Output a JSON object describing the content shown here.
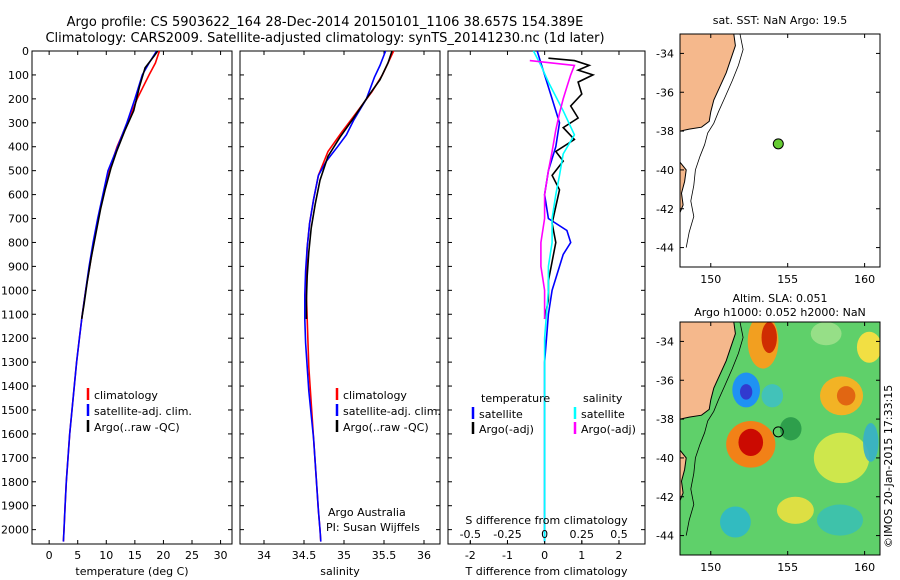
{
  "header": {
    "line1": "Argo profile: CS 5903622_164 28-Dec-2014 20150101_1106 38.657S 154.389E",
    "line2": "Climatology: CARS2009. Satellite-adjusted climatology: synTS_20141230.nc (1d later)"
  },
  "colors": {
    "climatology": "#ff0000",
    "satellite": "#0000ff",
    "argo": "#000000",
    "sat_salinity": "#00ffff",
    "argo_adj_salinity": "#ff00ff",
    "land": "#f5b88c",
    "argo_marker": "#66cc33"
  },
  "chart_data": [
    {
      "type": "line",
      "xlabel": "temperature (deg C)",
      "xlim": [
        -3,
        32
      ],
      "x_ticks": [
        0,
        5,
        10,
        15,
        20,
        25,
        30
      ],
      "y_ticks": [
        0,
        100,
        200,
        300,
        400,
        500,
        600,
        700,
        800,
        900,
        1000,
        1100,
        1200,
        1300,
        1400,
        1500,
        1600,
        1700,
        1800,
        1900,
        2000
      ],
      "ylim": [
        2060,
        0
      ],
      "legend": [
        "climatology",
        "satellite-adj. clim.",
        "Argo(..raw -QC)"
      ],
      "series": [
        {
          "name": "climatology",
          "color": "climatology",
          "points": [
            [
              19.3,
              0
            ],
            [
              18.6,
              50
            ],
            [
              17.5,
              100
            ],
            [
              15.4,
              200
            ],
            [
              13.7,
              300
            ],
            [
              11.9,
              400
            ],
            [
              10.5,
              500
            ],
            [
              9.5,
              600
            ],
            [
              8.6,
              700
            ],
            [
              7.8,
              800
            ],
            [
              7.1,
              900
            ],
            [
              6.4,
              1000
            ],
            [
              5.8,
              1100
            ],
            [
              5.3,
              1200
            ],
            [
              4.8,
              1300
            ],
            [
              4.4,
              1400
            ],
            [
              4.0,
              1500
            ],
            [
              3.6,
              1600
            ],
            [
              3.3,
              1700
            ],
            [
              3.0,
              1800
            ],
            [
              2.8,
              1900
            ],
            [
              2.6,
              2000
            ],
            [
              2.5,
              2050
            ]
          ]
        },
        {
          "name": "satellite-adj. clim.",
          "color": "satellite",
          "points": [
            [
              18.8,
              0
            ],
            [
              17.5,
              50
            ],
            [
              16.3,
              100
            ],
            [
              15.0,
              200
            ],
            [
              13.6,
              300
            ],
            [
              12.0,
              400
            ],
            [
              10.3,
              500
            ],
            [
              9.4,
              600
            ],
            [
              8.5,
              700
            ],
            [
              7.7,
              800
            ],
            [
              7.0,
              900
            ],
            [
              6.4,
              1000
            ],
            [
              5.8,
              1100
            ],
            [
              5.3,
              1200
            ],
            [
              4.8,
              1300
            ],
            [
              4.4,
              1400
            ],
            [
              4.0,
              1500
            ],
            [
              3.6,
              1600
            ],
            [
              3.3,
              1700
            ],
            [
              3.0,
              1800
            ],
            [
              2.8,
              1900
            ],
            [
              2.6,
              2000
            ],
            [
              2.5,
              2050
            ]
          ]
        },
        {
          "name": "Argo(..raw -QC)",
          "color": "argo",
          "points": [
            [
              19.0,
              0
            ],
            [
              18.4,
              20
            ],
            [
              16.8,
              70
            ],
            [
              15.8,
              150
            ],
            [
              14.8,
              250
            ],
            [
              13.3,
              330
            ],
            [
              11.8,
              420
            ],
            [
              10.8,
              490
            ],
            [
              9.8,
              580
            ],
            [
              9.0,
              660
            ],
            [
              8.2,
              760
            ],
            [
              7.4,
              860
            ],
            [
              6.7,
              960
            ],
            [
              6.1,
              1060
            ],
            [
              5.7,
              1120
            ]
          ]
        }
      ]
    },
    {
      "type": "line",
      "xlabel": "salinity",
      "xlim": [
        33.7,
        36.2
      ],
      "x_ticks": [
        34,
        34.5,
        35,
        35.5,
        36
      ],
      "ylim": [
        2060,
        0
      ],
      "legend": [
        "climatology",
        "satellite-adj. clim.",
        "Argo(..raw -QC)"
      ],
      "annotation": [
        "Argo Australia",
        "PI: Susan Wijffels"
      ],
      "series": [
        {
          "name": "climatology",
          "color": "climatology",
          "points": [
            [
              35.62,
              0
            ],
            [
              35.55,
              50
            ],
            [
              35.48,
              100
            ],
            [
              35.35,
              170
            ],
            [
              35.15,
              260
            ],
            [
              34.97,
              340
            ],
            [
              34.8,
              420
            ],
            [
              34.68,
              520
            ],
            [
              34.62,
              620
            ],
            [
              34.57,
              720
            ],
            [
              34.54,
              820
            ],
            [
              34.53,
              920
            ],
            [
              34.53,
              1020
            ],
            [
              34.54,
              1120
            ],
            [
              34.55,
              1220
            ],
            [
              34.56,
              1320
            ],
            [
              34.58,
              1420
            ],
            [
              34.6,
              1520
            ],
            [
              34.62,
              1620
            ],
            [
              34.64,
              1720
            ],
            [
              34.66,
              1820
            ],
            [
              34.68,
              1920
            ],
            [
              34.7,
              2000
            ],
            [
              34.71,
              2050
            ]
          ]
        },
        {
          "name": "satellite-adj. clim.",
          "color": "satellite",
          "points": [
            [
              35.52,
              0
            ],
            [
              35.45,
              60
            ],
            [
              35.38,
              110
            ],
            [
              35.28,
              200
            ],
            [
              35.12,
              290
            ],
            [
              35.03,
              350
            ],
            [
              34.92,
              400
            ],
            [
              34.78,
              460
            ],
            [
              34.68,
              520
            ],
            [
              34.62,
              620
            ],
            [
              34.57,
              720
            ],
            [
              34.54,
              820
            ],
            [
              34.52,
              920
            ],
            [
              34.51,
              1020
            ],
            [
              34.51,
              1120
            ],
            [
              34.52,
              1220
            ],
            [
              34.54,
              1320
            ],
            [
              34.56,
              1420
            ],
            [
              34.59,
              1520
            ],
            [
              34.62,
              1620
            ],
            [
              34.64,
              1720
            ],
            [
              34.66,
              1820
            ],
            [
              34.68,
              1920
            ],
            [
              34.7,
              2000
            ],
            [
              34.71,
              2050
            ]
          ]
        },
        {
          "name": "Argo(..raw -QC)",
          "color": "argo",
          "points": [
            [
              35.6,
              0
            ],
            [
              35.55,
              50
            ],
            [
              35.45,
              120
            ],
            [
              35.3,
              190
            ],
            [
              35.12,
              280
            ],
            [
              34.95,
              360
            ],
            [
              34.8,
              440
            ],
            [
              34.7,
              540
            ],
            [
              34.64,
              640
            ],
            [
              34.59,
              740
            ],
            [
              34.56,
              840
            ],
            [
              34.54,
              940
            ],
            [
              34.53,
              1040
            ],
            [
              34.53,
              1120
            ]
          ]
        }
      ]
    },
    {
      "type": "line",
      "xlabel": "T difference from climatology",
      "xlabel2": "S difference from climatology",
      "xlim": [
        -2.6,
        2.7
      ],
      "x_ticks": [
        -2,
        -1,
        0,
        1,
        2
      ],
      "x_ticks_top": [
        -0.5,
        -0.25,
        0,
        0.25,
        0.5
      ],
      "x_ticks_top_labels": [
        "-0.5",
        "-0.25",
        "0",
        "0.25",
        "0.5"
      ],
      "ylim": [
        2060,
        0
      ],
      "legend_headers": [
        "temperature",
        "salinity"
      ],
      "legend": [
        "satellite",
        "Argo(-adj)",
        "satellite",
        "Argo(-adj)"
      ],
      "series": [
        {
          "name": "satellite",
          "color": "satellite",
          "points": [
            [
              -0.2,
              0
            ],
            [
              -0.1,
              50
            ],
            [
              0.0,
              100
            ],
            [
              0.2,
              200
            ],
            [
              0.4,
              300
            ],
            [
              0.3,
              400
            ],
            [
              0.1,
              500
            ],
            [
              0.0,
              600
            ],
            [
              0.1,
              700
            ],
            [
              0.6,
              750
            ],
            [
              0.7,
              800
            ],
            [
              0.5,
              850
            ],
            [
              0.4,
              900
            ],
            [
              0.2,
              1000
            ],
            [
              0.1,
              1100
            ],
            [
              0.05,
              1200
            ],
            [
              0.0,
              1300
            ],
            [
              0.0,
              1400
            ],
            [
              0.0,
              1500
            ],
            [
              0.0,
              1600
            ],
            [
              0.0,
              1700
            ],
            [
              0.0,
              1800
            ],
            [
              0.0,
              1900
            ],
            [
              0.0,
              2000
            ],
            [
              0.0,
              2050
            ]
          ]
        },
        {
          "name": "Argo(-adj)",
          "color": "argo",
          "points": [
            [
              0.1,
              30
            ],
            [
              0.8,
              40
            ],
            [
              1.2,
              60
            ],
            [
              0.9,
              80
            ],
            [
              1.3,
              100
            ],
            [
              0.9,
              130
            ],
            [
              1.0,
              180
            ],
            [
              0.7,
              230
            ],
            [
              0.9,
              280
            ],
            [
              0.5,
              320
            ],
            [
              0.8,
              370
            ],
            [
              0.3,
              420
            ],
            [
              0.5,
              460
            ],
            [
              0.2,
              520
            ],
            [
              0.4,
              580
            ],
            [
              0.3,
              650
            ],
            [
              0.2,
              720
            ],
            [
              0.3,
              800
            ],
            [
              0.2,
              880
            ],
            [
              0.1,
              960
            ],
            [
              0.1,
              1040
            ],
            [
              0.0,
              1120
            ]
          ]
        },
        {
          "name": "satellite",
          "color": "sat_salinity",
          "points": [
            [
              -0.3,
              0
            ],
            [
              -0.1,
              60
            ],
            [
              0.1,
              130
            ],
            [
              0.5,
              250
            ],
            [
              0.8,
              350
            ],
            [
              0.5,
              430
            ],
            [
              0.4,
              520
            ],
            [
              0.3,
              600
            ],
            [
              0.2,
              700
            ],
            [
              0.2,
              800
            ],
            [
              0.1,
              900
            ],
            [
              0.1,
              1000
            ],
            [
              0.05,
              1100
            ],
            [
              0.0,
              1200
            ],
            [
              0.0,
              1400
            ],
            [
              0.0,
              1600
            ],
            [
              0.0,
              1800
            ],
            [
              0.0,
              2000
            ],
            [
              0.0,
              2050
            ]
          ]
        },
        {
          "name": "Argo(-adj)",
          "color": "argo_adj_salinity",
          "points": [
            [
              -0.4,
              40
            ],
            [
              0.8,
              60
            ],
            [
              0.7,
              100
            ],
            [
              0.6,
              150
            ],
            [
              0.5,
              200
            ],
            [
              0.4,
              260
            ],
            [
              0.3,
              330
            ],
            [
              0.2,
              420
            ],
            [
              0.1,
              500
            ],
            [
              0.0,
              600
            ],
            [
              0.0,
              700
            ],
            [
              -0.1,
              800
            ],
            [
              -0.1,
              900
            ],
            [
              0.0,
              1000
            ],
            [
              0.0,
              1120
            ]
          ]
        }
      ]
    },
    {
      "type": "scatter",
      "title": "sat. SST: NaN Argo: 19.5",
      "xlim": [
        148,
        161
      ],
      "ylim": [
        -45,
        -33
      ],
      "x_ticks": [
        150,
        155,
        160
      ],
      "y_ticks": [
        -34,
        -36,
        -38,
        -40,
        -42,
        -44
      ],
      "points": [
        [
          154.389,
          -38.657
        ]
      ]
    },
    {
      "type": "heatmap",
      "title_line1": "Altim. SLA: 0.051",
      "title_line2": "Argo h1000: 0.052 h2000: NaN",
      "xlim": [
        148,
        161
      ],
      "ylim": [
        -45,
        -33
      ],
      "x_ticks": [
        150,
        155,
        160
      ],
      "y_ticks": [
        -34,
        -36,
        -38,
        -40,
        -42,
        -44
      ],
      "points": [
        [
          154.389,
          -38.657
        ]
      ]
    }
  ],
  "watermark": "©IMOS 20-Jan-2015 17:33:15"
}
